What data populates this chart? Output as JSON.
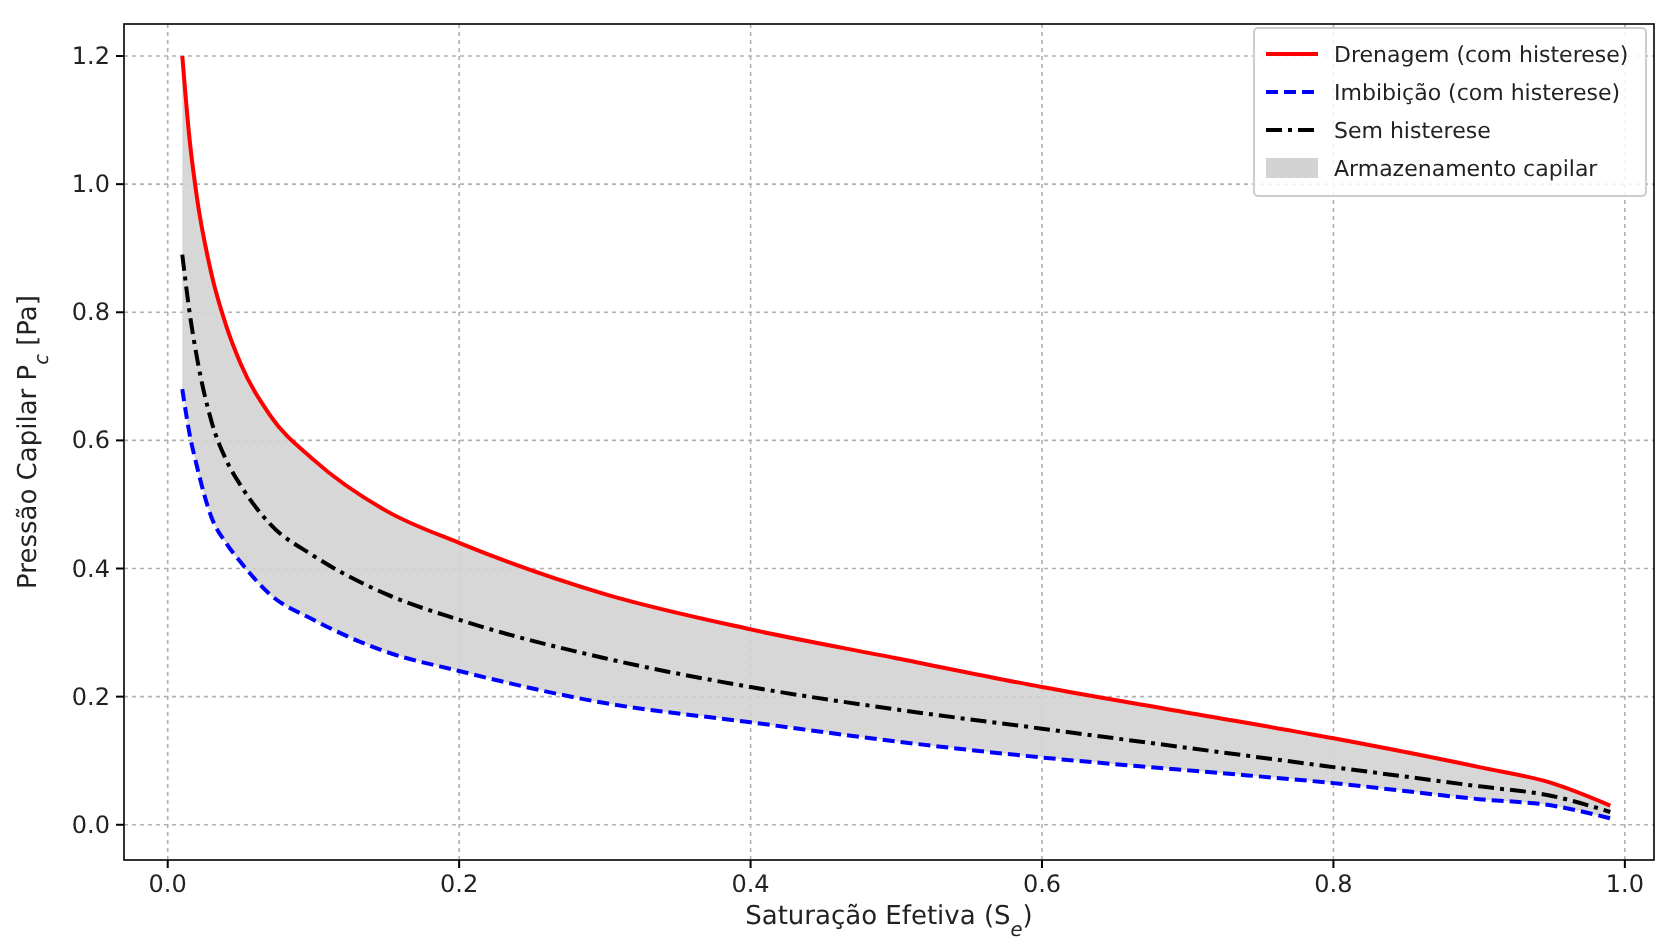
{
  "chart_data": {
    "type": "line",
    "xlabel": "Saturação Efetiva (S$_{e}$)",
    "ylabel": "Pressão Capilar P$_{c}$ [Pa]",
    "x": [
      0.01,
      0.015,
      0.02,
      0.03,
      0.04,
      0.05,
      0.07,
      0.1,
      0.15,
      0.2,
      0.3,
      0.4,
      0.5,
      0.6,
      0.7,
      0.8,
      0.9,
      0.95,
      0.99
    ],
    "series": [
      {
        "name": "Armazenamento capilar",
        "type": "area",
        "color": "#d3d3d3",
        "values": [
          null,
          null,
          null,
          null,
          null,
          null,
          null,
          null,
          null,
          null,
          null,
          null,
          null,
          null,
          null,
          null,
          null,
          null,
          null
        ],
        "lower": [
          0.68,
          0.61,
          0.56,
          0.48,
          0.44,
          0.41,
          0.36,
          0.32,
          0.27,
          0.24,
          0.19,
          0.16,
          0.13,
          0.105,
          0.085,
          0.065,
          0.04,
          0.03,
          0.01
        ],
        "upper": [
          1.2,
          1.07,
          0.98,
          0.86,
          0.78,
          0.72,
          0.64,
          0.57,
          0.49,
          0.44,
          0.36,
          0.305,
          0.26,
          0.215,
          0.175,
          0.135,
          0.09,
          0.065,
          0.03
        ]
      },
      {
        "name": "Drenagem (com histerese)",
        "color": "#ff0000",
        "line_style": "solid",
        "values": [
          1.2,
          1.07,
          0.98,
          0.86,
          0.78,
          0.72,
          0.64,
          0.57,
          0.49,
          0.44,
          0.36,
          0.305,
          0.26,
          0.215,
          0.175,
          0.135,
          0.09,
          0.065,
          0.03
        ]
      },
      {
        "name": "Imbibição (com histerese)",
        "color": "#0000ff",
        "line_style": "dashed",
        "values": [
          0.68,
          0.61,
          0.56,
          0.48,
          0.44,
          0.41,
          0.36,
          0.32,
          0.27,
          0.24,
          0.19,
          0.16,
          0.13,
          0.105,
          0.085,
          0.065,
          0.04,
          0.03,
          0.01
        ]
      },
      {
        "name": "Sem histerese",
        "color": "#000000",
        "line_style": "dashdot",
        "values": [
          0.89,
          0.8,
          0.73,
          0.63,
          0.57,
          0.53,
          0.47,
          0.42,
          0.36,
          0.32,
          0.26,
          0.215,
          0.18,
          0.15,
          0.12,
          0.09,
          0.06,
          0.045,
          0.02
        ]
      }
    ],
    "xlim": [
      -0.03,
      1.02
    ],
    "ylim": [
      -0.055,
      1.25
    ],
    "xticks": [
      {
        "value": 0,
        "label": "0.0"
      },
      0.2,
      0.4,
      0.6,
      0.8,
      {
        "value": 1,
        "label": "1.0"
      }
    ],
    "yticks": [
      {
        "value": 0,
        "label": "0.0"
      },
      0.2,
      0.4,
      0.6,
      0.8,
      {
        "value": 1,
        "label": "1.0"
      },
      1.2
    ],
    "grid": true,
    "legend": "top right"
  }
}
